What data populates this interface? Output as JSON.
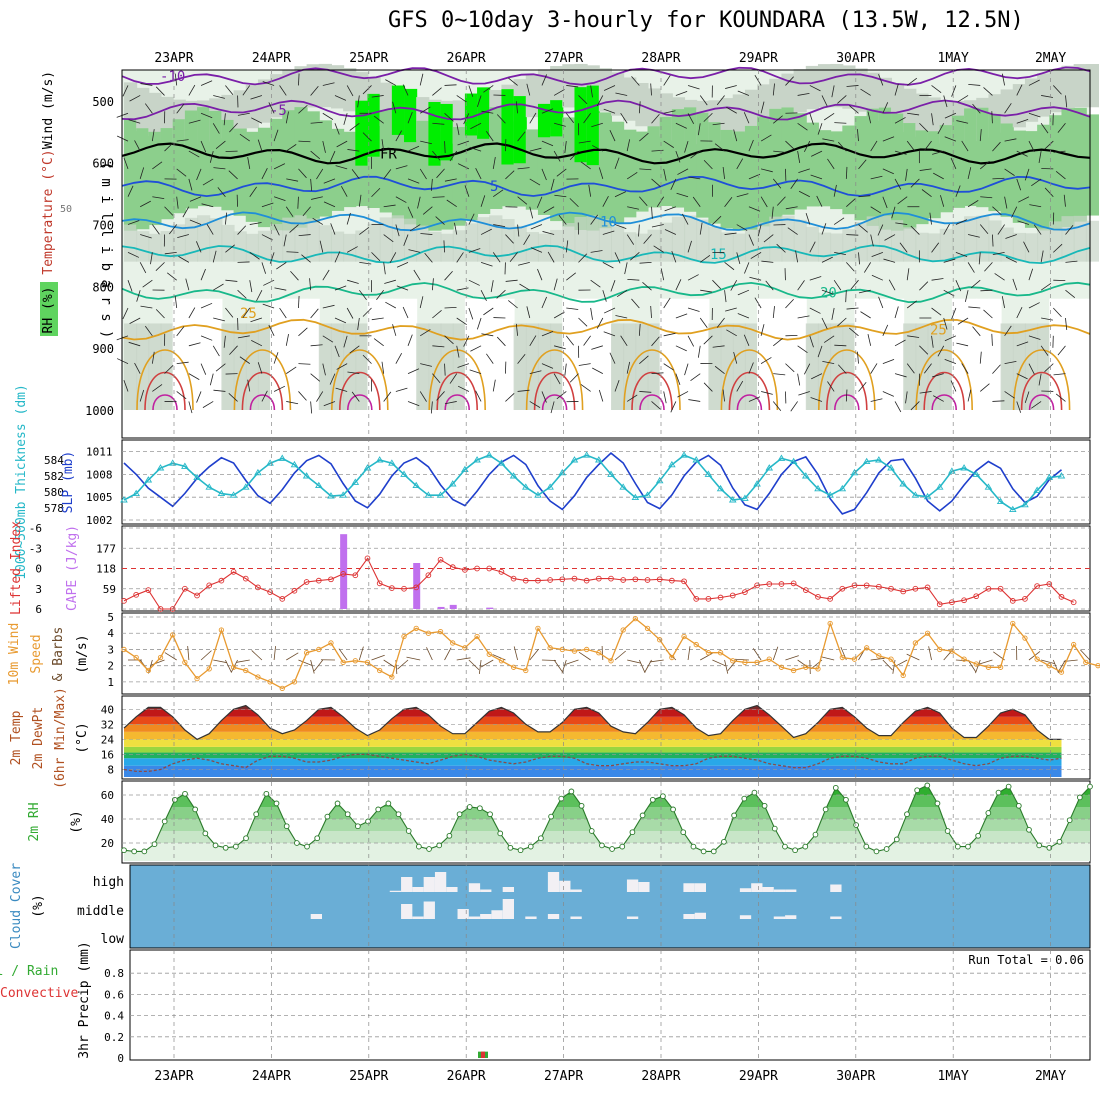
{
  "title": "GFS 0~10day 3-hourly for KOUNDARA (13.5W, 12.5N)",
  "dates": [
    "23APR",
    "24APR",
    "25APR",
    "26APR",
    "27APR",
    "28APR",
    "29APR",
    "30APR",
    "1MAY",
    "2MAY"
  ],
  "panel_labels": {
    "upper_rh": "RH (%)",
    "upper_temp": "Temperature (°C)",
    "upper_wind": "Wind (m/s)",
    "upper_pres": "( m i l l i b a r s )",
    "thick": "1000~500mb Thickness (dm)",
    "slp": "SLP (mb)",
    "li": "Lifted Index",
    "cape": "CAPE (J/kg)",
    "wind10_a": "10m Wind",
    "wind10_b": "Speed",
    "wind10_c": "& Barbs",
    "wind10_unit": "(m/s)",
    "t2_a": "2m Temp",
    "t2_b": "2m DewPt",
    "t2_c": "(6hr Min/Max)",
    "t2_unit": "(°C)",
    "rh2_a": "2m RH",
    "rh2_unit": "(%)",
    "cloud_a": "Cloud Cover",
    "cloud_unit": "(%)",
    "cloud_high": "high",
    "cloud_middle": "middle",
    "cloud_low": "low",
    "precip_a": "tal / Rain",
    "precip_b": "Convective",
    "precip_c": "3hr Precip (mm)",
    "run_total": "Run Total = 0.06"
  },
  "colors": {
    "rh_light": "#e8f2e8",
    "rh_gray": "#c8d4c8",
    "rh_mid": "#8ccf8c",
    "rh_high": "#5fd45f",
    "rh_bright": "#00ee00",
    "slp": "#1f3fcc",
    "thickness": "#26b8c8",
    "lifted": "#dd3333",
    "cape": "#c070ee",
    "wind10": "#e89a30",
    "cloud_bg": "#6aaed6",
    "rh2": "#33aa33"
  },
  "chart_data": [
    {
      "type": "heatmap",
      "name": "upper-air",
      "ylabel": "( m i l l i b a r s )",
      "y_ticks": [
        500,
        600,
        700,
        800,
        900,
        1000
      ],
      "ylim": [
        1000,
        450
      ],
      "temperature_contours": [
        {
          "label": "-10",
          "pressure": 460,
          "color": "#7a1fa8"
        },
        {
          "label": "-5",
          "pressure": 515,
          "color": "#7a1fa8"
        },
        {
          "label": "FR",
          "pressure": 585,
          "color": "#000000"
        },
        {
          "label": "5",
          "pressure": 638,
          "color": "#1f4fd8"
        },
        {
          "label": "10",
          "pressure": 695,
          "color": "#1f8fd8"
        },
        {
          "label": "15",
          "pressure": 748,
          "color": "#18b8b8"
        },
        {
          "label": "20",
          "pressure": 810,
          "color": "#18b88a"
        },
        {
          "label": "25",
          "pressure": 870,
          "color": "#e0a020"
        }
      ],
      "rh_label": "50"
    },
    {
      "type": "line",
      "name": "thickness-slp",
      "x": [
        "22APR15",
        "22APR18",
        "22APR21",
        "23APR00",
        "23APR03",
        "23APR06",
        "23APR09",
        "23APR12",
        "23APR15",
        "23APR18",
        "23APR21",
        "24APR00",
        "24APR03",
        "24APR06",
        "24APR09",
        "24APR12",
        "24APR15",
        "24APR18",
        "24APR21",
        "25APR00",
        "25APR03",
        "25APR06",
        "25APR09",
        "25APR12",
        "25APR15",
        "25APR18",
        "25APR21",
        "26APR00",
        "26APR03",
        "26APR06",
        "26APR09",
        "26APR12",
        "26APR15",
        "26APR18",
        "26APR21",
        "27APR00",
        "27APR03",
        "27APR06",
        "27APR09",
        "27APR12",
        "27APR15",
        "27APR18",
        "27APR21",
        "28APR00",
        "28APR03",
        "28APR06",
        "28APR09",
        "28APR12",
        "28APR15",
        "28APR18",
        "28APR21",
        "29APR00",
        "29APR03",
        "29APR06",
        "29APR09",
        "29APR12",
        "29APR15",
        "29APR18",
        "29APR21",
        "30APR00",
        "30APR03",
        "30APR06",
        "30APR09",
        "30APR12",
        "30APR15",
        "30APR18",
        "30APR21",
        "1MAY00",
        "1MAY03",
        "1MAY06",
        "1MAY09",
        "1MAY12",
        "1MAY15",
        "1MAY18",
        "1MAY21",
        "2MAY00",
        "2MAY03",
        "2MAY06"
      ],
      "thickness_ticks": [
        578,
        580,
        582,
        584
      ],
      "slp_ticks": [
        1002,
        1005,
        1008,
        1011
      ],
      "thickness_ylim": [
        576.5,
        586
      ],
      "slp_ylim": [
        1002,
        1012
      ],
      "series": [
        {
          "name": "SLP (mb)",
          "axis": "slp",
          "values": [
            1009.5,
            1008.0,
            1006.2,
            1005.0,
            1003.8,
            1005.5,
            1007.5,
            1009.0,
            1010.2,
            1009.5,
            1007.2,
            1005.2,
            1004.2,
            1006.0,
            1008.2,
            1009.8,
            1010.5,
            1009.4,
            1006.8,
            1004.5,
            1003.6,
            1005.4,
            1007.8,
            1009.5,
            1010.2,
            1009.0,
            1006.6,
            1004.7,
            1003.9,
            1005.8,
            1008.0,
            1009.6,
            1010.5,
            1009.3,
            1006.5,
            1004.5,
            1003.4,
            1005.2,
            1007.6,
            1009.3,
            1010.8,
            1009.5,
            1006.8,
            1004.3,
            1003.5,
            1005.3,
            1007.8,
            1009.6,
            1010.5,
            1009.2,
            1006.2,
            1004.0,
            1003.4,
            1005.5,
            1008.0,
            1009.7,
            1010.3,
            1008.0,
            1004.8,
            1002.8,
            1003.4,
            1005.6,
            1008.2,
            1009.8,
            1010.0,
            1007.5,
            1004.5,
            1003.2,
            1004.5,
            1006.6,
            1008.5,
            1009.7,
            1008.8,
            1006.1,
            1004.3,
            1005.1,
            1007.3,
            1008.6
          ]
        },
        {
          "name": "1000~500mb Thickness (dm)",
          "axis": "thickness",
          "values": [
            579.0,
            579.8,
            581.5,
            583.0,
            583.6,
            583.2,
            581.8,
            580.6,
            579.8,
            579.6,
            580.6,
            582.4,
            583.6,
            584.2,
            583.4,
            582.0,
            580.8,
            579.5,
            579.6,
            581.2,
            583.0,
            584.0,
            583.6,
            582.2,
            580.8,
            579.6,
            579.6,
            581.0,
            582.8,
            584.0,
            584.6,
            583.6,
            582.0,
            580.6,
            579.6,
            580.6,
            582.4,
            584.0,
            584.6,
            584.0,
            582.2,
            580.6,
            579.3,
            579.6,
            581.4,
            583.4,
            584.6,
            584.0,
            582.2,
            580.4,
            579.0,
            579.2,
            581.0,
            583.0,
            584.2,
            583.8,
            582.0,
            580.4,
            579.6,
            580.4,
            582.4,
            583.8,
            584.0,
            583.0,
            581.0,
            579.6,
            579.4,
            580.6,
            582.6,
            583.0,
            582.2,
            580.6,
            578.8,
            577.8,
            578.4,
            580.2,
            581.8,
            582.0
          ]
        }
      ]
    },
    {
      "type": "line",
      "name": "lifted-cape",
      "li_ticks": [
        "-6",
        "-3",
        "0",
        "3",
        "6"
      ],
      "cape_ticks": [
        "177",
        "118",
        "59"
      ],
      "li_ylim": [
        6,
        -6
      ],
      "cape_ylim": [
        0,
        236
      ],
      "li_values": [
        4.8,
        3.9,
        3.2,
        6.0,
        6.0,
        3.0,
        4.0,
        2.5,
        1.8,
        0.5,
        1.5,
        2.8,
        3.5,
        4.5,
        3.3,
        2.0,
        1.8,
        1.6,
        0.8,
        1.0,
        -1.5,
        2.2,
        2.9,
        3.0,
        2.8,
        1.0,
        -1.3,
        -0.2,
        0.2,
        0.0,
        0.0,
        0.5,
        1.5,
        1.8,
        1.8,
        1.7,
        1.6,
        1.5,
        1.8,
        1.5,
        1.5,
        1.7,
        1.6,
        1.7,
        1.6,
        1.8,
        1.9,
        4.5,
        4.5,
        4.3,
        4.0,
        3.5,
        2.5,
        2.3,
        2.3,
        2.2,
        3.2,
        4.2,
        4.5,
        3.0,
        2.5,
        2.5,
        2.7,
        3.0,
        3.4,
        3.0,
        2.8,
        5.3,
        5.0,
        4.7,
        4.1,
        3.0,
        3.0,
        4.8,
        4.5,
        2.6,
        2.3,
        4.2,
        5.0
      ],
      "cape_bars": [
        {
          "x": "24APR21",
          "value": 218
        },
        {
          "x": "25APR15",
          "value": 134
        },
        {
          "x": "25APR21",
          "value": 6
        },
        {
          "x": "26APR00",
          "value": 12
        },
        {
          "x": "26APR09",
          "value": 4
        }
      ]
    },
    {
      "type": "line",
      "name": "wind10",
      "y_ticks": [
        1,
        2,
        3,
        4,
        5
      ],
      "ylim": [
        0.5,
        5
      ],
      "values": [
        3.0,
        2.5,
        1.7,
        2.5,
        3.9,
        2.2,
        1.2,
        1.8,
        4.2,
        1.9,
        1.7,
        1.3,
        1.0,
        0.6,
        1.0,
        2.8,
        3.0,
        3.4,
        2.2,
        2.3,
        2.2,
        1.7,
        1.3,
        3.8,
        4.3,
        4.0,
        4.1,
        3.4,
        3.1,
        3.8,
        2.7,
        2.3,
        1.9,
        1.7,
        4.3,
        3.1,
        3.0,
        2.9,
        3.0,
        2.8,
        2.3,
        4.2,
        4.9,
        4.3,
        3.6,
        2.5,
        3.8,
        3.3,
        2.8,
        2.8,
        2.3,
        2.2,
        2.2,
        2.4,
        1.9,
        1.7,
        1.9,
        1.8,
        4.6,
        2.5,
        2.4,
        3.1,
        2.6,
        2.4,
        1.4,
        3.4,
        4.0,
        3.0,
        2.9,
        2.4,
        2.1,
        1.9,
        1.9,
        4.6,
        3.7,
        2.4,
        2.0,
        1.6,
        3.3,
        2.2,
        2.0,
        2.1
      ]
    },
    {
      "type": "area",
      "name": "temp2m",
      "y_ticks": [
        8,
        16,
        24,
        32,
        40
      ],
      "ylim": [
        4,
        46
      ],
      "temp_values": [
        30,
        36,
        41,
        41,
        36,
        29,
        24,
        27,
        34,
        40,
        42,
        37,
        30,
        27,
        29,
        34,
        40,
        41,
        36,
        30,
        26,
        29,
        35,
        40,
        41,
        37,
        31,
        27,
        27,
        33,
        39,
        41,
        38,
        32,
        28,
        28,
        33,
        40,
        41,
        38,
        31,
        28,
        27,
        33,
        40,
        41,
        37,
        30,
        26,
        27,
        34,
        40,
        42,
        37,
        31,
        25,
        27,
        33,
        40,
        41,
        36,
        30,
        26,
        26,
        33,
        39,
        41,
        38,
        30,
        25,
        25,
        31,
        38,
        40,
        37,
        29,
        24,
        24
      ],
      "dewpt_values": [
        8,
        7,
        7,
        8,
        11,
        13,
        14,
        13,
        11,
        10,
        9,
        13,
        15,
        15,
        14,
        12,
        12,
        13,
        15,
        16,
        16,
        15,
        14,
        13,
        12,
        11,
        13,
        15,
        16,
        15,
        13,
        12,
        11,
        12,
        14,
        15,
        15,
        14,
        11,
        10,
        10,
        11,
        12,
        12,
        11,
        10,
        10,
        11,
        14,
        15,
        15,
        14,
        13,
        11,
        10,
        9,
        9,
        11,
        14,
        15,
        15,
        14,
        12,
        11,
        11,
        14,
        15,
        15,
        13,
        11,
        10,
        11,
        14,
        15,
        15,
        14,
        13,
        14
      ]
    },
    {
      "type": "area",
      "name": "rh2m",
      "y_ticks": [
        20,
        40,
        60
      ],
      "ylim": [
        5,
        70
      ],
      "values": [
        14,
        13,
        13,
        19,
        38,
        56,
        61,
        48,
        28,
        18,
        16,
        17,
        24,
        44,
        61,
        53,
        34,
        20,
        17,
        24,
        42,
        53,
        44,
        34,
        38,
        48,
        53,
        44,
        30,
        17,
        15,
        18,
        26,
        44,
        50,
        49,
        44,
        28,
        16,
        14,
        17,
        24,
        42,
        57,
        63,
        51,
        30,
        18,
        15,
        17,
        29,
        43,
        56,
        59,
        48,
        29,
        17,
        13,
        13,
        21,
        43,
        57,
        62,
        51,
        32,
        17,
        14,
        17,
        27,
        48,
        66,
        56,
        35,
        17,
        13,
        15,
        23,
        44,
        64,
        68,
        53,
        30,
        17,
        17,
        26,
        45,
        62,
        67,
        51,
        31,
        18,
        16,
        21,
        39,
        58,
        67
      ]
    },
    {
      "type": "bar",
      "name": "cloud-cover",
      "levels": [
        "high",
        "middle",
        "low"
      ],
      "high_values": [
        0,
        0,
        0,
        0,
        0,
        0,
        0,
        0,
        0,
        0,
        0,
        0,
        0,
        0,
        0,
        0,
        0,
        0,
        0,
        0,
        0,
        0,
        0,
        5,
        60,
        20,
        60,
        80,
        20,
        0,
        35,
        10,
        0,
        20,
        0,
        0,
        0,
        80,
        45,
        10,
        0,
        0,
        0,
        0,
        50,
        40,
        0,
        0,
        0,
        35,
        35,
        0,
        0,
        0,
        15,
        35,
        20,
        10,
        10,
        0,
        0,
        0,
        30,
        0,
        0,
        0,
        0,
        0,
        0,
        0,
        0,
        0,
        0,
        0,
        0,
        0,
        0,
        0,
        0,
        0,
        0,
        0,
        0,
        0,
        0
      ],
      "middle_values": [
        0,
        0,
        0,
        0,
        0,
        0,
        0,
        0,
        0,
        0,
        0,
        0,
        0,
        0,
        0,
        0,
        20,
        0,
        0,
        0,
        0,
        0,
        0,
        0,
        60,
        10,
        70,
        0,
        0,
        40,
        10,
        20,
        35,
        80,
        0,
        10,
        0,
        20,
        0,
        10,
        0,
        0,
        0,
        0,
        10,
        0,
        0,
        0,
        0,
        20,
        25,
        0,
        0,
        0,
        15,
        0,
        0,
        10,
        15,
        0,
        0,
        0,
        10,
        0,
        0,
        0,
        0,
        0,
        0,
        0,
        0,
        0,
        0,
        0,
        0,
        0,
        0,
        0,
        0,
        0,
        0,
        0,
        0,
        0,
        0
      ]
    },
    {
      "type": "bar",
      "name": "precip",
      "y_ticks": [
        "0",
        "0.2",
        "0.4",
        "0.6",
        "0.8"
      ],
      "ylim": [
        0,
        1
      ],
      "bars": [
        {
          "x": "26APR03",
          "total": 0.06,
          "convective": 0.06
        }
      ],
      "run_total": "Run Total = 0.06"
    }
  ]
}
